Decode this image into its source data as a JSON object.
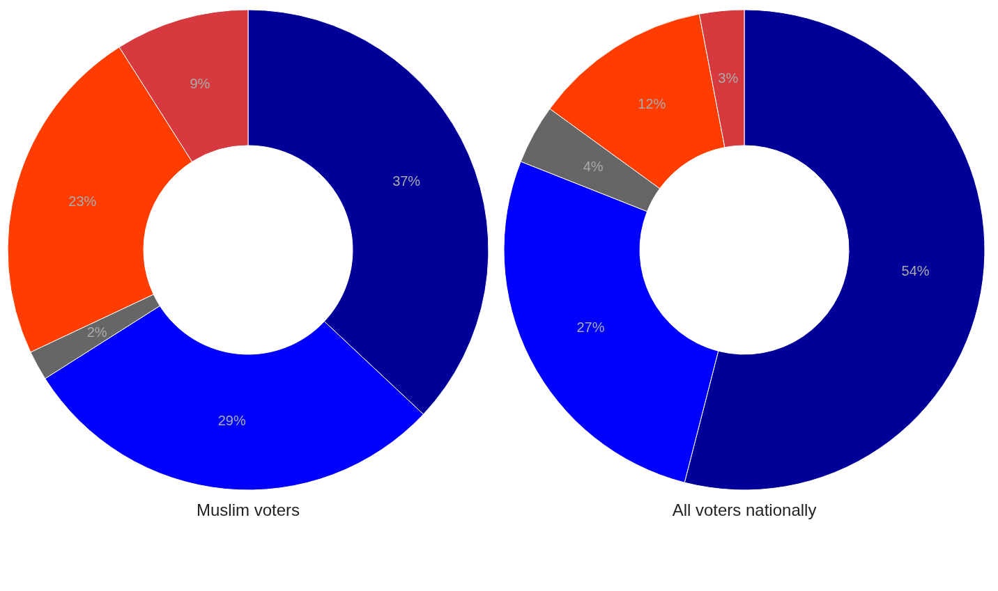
{
  "chart_data": [
    {
      "type": "donut",
      "title": "Muslim voters",
      "categories": [
        null,
        null,
        null,
        null,
        null
      ],
      "values": [
        37,
        29,
        2,
        23,
        9
      ],
      "colors": [
        "#000099",
        "#0000ff",
        "#666666",
        "#ff3d00",
        "#d63a3e"
      ],
      "value_labels": [
        "37%",
        "29%",
        "2%",
        "23%",
        "9%"
      ]
    },
    {
      "type": "donut",
      "title": "All voters nationally",
      "categories": [
        null,
        null,
        null,
        null,
        null
      ],
      "values": [
        54,
        27,
        4,
        12,
        3
      ],
      "colors": [
        "#000099",
        "#0000ff",
        "#666666",
        "#ff3d00",
        "#d63a3e"
      ],
      "value_labels": [
        "54%",
        "27%",
        "4%",
        "12%",
        "3%"
      ]
    }
  ]
}
